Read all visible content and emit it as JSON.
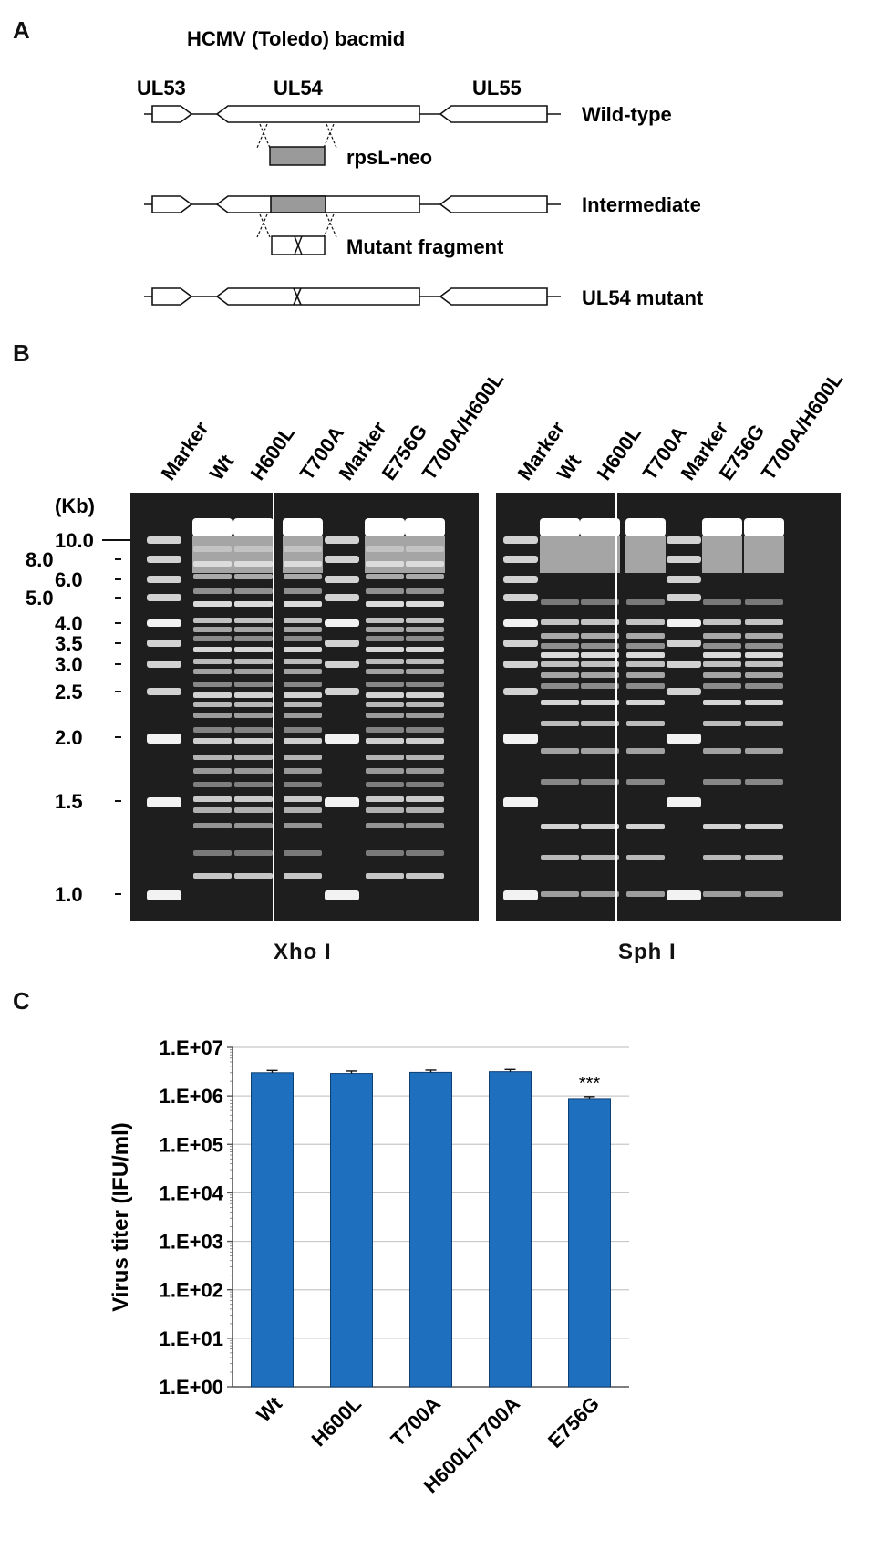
{
  "figure": {
    "panels": [
      "A",
      "B",
      "C"
    ]
  },
  "panel_a": {
    "title": "HCMV (Toledo) bacmid",
    "genes": [
      "UL53",
      "UL54",
      "UL55"
    ],
    "row_labels": {
      "wild_type": "Wild-type",
      "rpsl": "rpsL-neo",
      "intermediate": "Intermediate",
      "mutant_fragment": "Mutant fragment",
      "mutant": "UL54 mutant"
    }
  },
  "panel_b": {
    "kb_label": "(Kb)",
    "size_markers": [
      "10.0",
      "8.0",
      "6.0",
      "5.0",
      "4.0",
      "3.5",
      "3.0",
      "2.5",
      "2.0",
      "1.5",
      "1.0"
    ],
    "gels": [
      {
        "enzyme": "Xho I",
        "lanes": [
          "Marker",
          "Wt",
          "H600L",
          "T700A",
          "Marker",
          "E756G",
          "T700A/H600L"
        ]
      },
      {
        "enzyme": "Sph I",
        "lanes": [
          "Marker",
          "Wt",
          "H600L",
          "T700A",
          "Marker",
          "E756G",
          "T700A/H600L"
        ]
      }
    ]
  },
  "chart_data": {
    "type": "bar",
    "categories": [
      "Wt",
      "H600L",
      "T700A",
      "H600L/T700A",
      "E756G"
    ],
    "values": [
      3000000,
      2900000,
      3050000,
      3150000,
      850000
    ],
    "errors": [
      60000,
      80000,
      60000,
      50000,
      40000
    ],
    "annotations": [
      {
        "category": "E756G",
        "text": "***"
      }
    ],
    "ylabel": "Virus titer (IFU/ml)",
    "yscale": "log",
    "ylim": [
      1,
      10000000
    ],
    "yticks": [
      "1.E+00",
      "1.E+01",
      "1.E+02",
      "1.E+03",
      "1.E+04",
      "1.E+05",
      "1.E+06",
      "1.E+07"
    ],
    "grid": true,
    "bar_color": "#1f6fbf"
  }
}
